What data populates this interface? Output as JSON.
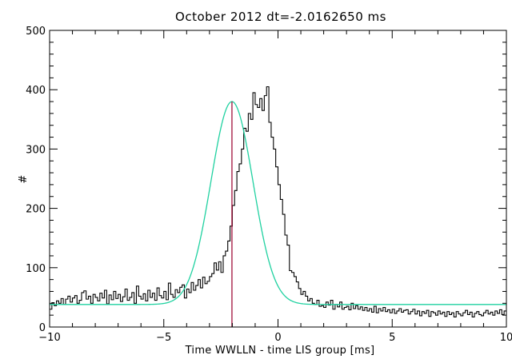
{
  "chart_data": {
    "type": "line",
    "title": "October 2012 dt=-2.0162650 ms",
    "xlabel": "Time WWLLN - time LIS group [ms]",
    "ylabel": "#",
    "xlim": [
      -10,
      10
    ],
    "ylim": [
      0,
      500
    ],
    "x_ticks": [
      -10,
      -5,
      0,
      5,
      10
    ],
    "x_tick_labels": [
      "−10",
      "−5",
      "0",
      "5",
      "10"
    ],
    "y_ticks": [
      0,
      100,
      200,
      300,
      400,
      500
    ],
    "y_tick_labels": [
      "0",
      "100",
      "200",
      "300",
      "400",
      "500"
    ],
    "grid": false,
    "legend": "none",
    "colors": {
      "histogram": "#000000",
      "fit": "#1fd1a0",
      "marker": "#a0103a",
      "axis": "#000000"
    },
    "series": [
      {
        "kind": "histogram",
        "bin_width": 0.1,
        "bin_start": -10,
        "values": [
          30,
          41,
          36,
          44,
          40,
          48,
          38,
          47,
          52,
          42,
          49,
          53,
          40,
          45,
          58,
          61,
          47,
          52,
          40,
          55,
          50,
          44,
          57,
          49,
          62,
          39,
          54,
          46,
          60,
          48,
          55,
          43,
          51,
          64,
          45,
          50,
          58,
          40,
          69,
          52,
          47,
          56,
          44,
          62,
          50,
          57,
          45,
          66,
          53,
          49,
          60,
          46,
          74,
          55,
          50,
          63,
          58,
          67,
          71,
          49,
          64,
          58,
          75,
          62,
          70,
          80,
          66,
          84,
          73,
          77,
          85,
          90,
          108,
          96,
          110,
          92,
          120,
          128,
          145,
          170,
          205,
          230,
          262,
          275,
          300,
          335,
          330,
          360,
          350,
          395,
          375,
          370,
          385,
          365,
          390,
          405,
          345,
          320,
          300,
          270,
          240,
          215,
          190,
          155,
          138,
          95,
          92,
          85,
          76,
          65,
          55,
          60,
          52,
          44,
          48,
          40,
          38,
          45,
          35,
          36,
          33,
          42,
          37,
          45,
          30,
          38,
          34,
          42,
          30,
          33,
          35,
          29,
          40,
          31,
          36,
          30,
          34,
          28,
          33,
          27,
          31,
          25,
          35,
          24,
          31,
          27,
          33,
          26,
          29,
          24,
          30,
          23,
          27,
          31,
          25,
          28,
          29,
          22,
          26,
          30,
          22,
          27,
          19,
          26,
          23,
          28,
          18,
          26,
          24,
          20,
          27,
          22,
          25,
          18,
          26,
          21,
          24,
          17,
          26,
          22,
          19,
          24,
          28,
          21,
          25,
          17,
          23,
          26,
          21,
          19,
          24,
          28,
          22,
          25,
          20,
          27,
          23,
          29,
          21,
          27
        ]
      },
      {
        "kind": "gaussian-fit",
        "baseline": 38,
        "amplitude": 342,
        "center": -2.016265,
        "sigma": 0.92,
        "x_range": [
          -10,
          10
        ]
      }
    ],
    "marker_x": -2.016265
  }
}
